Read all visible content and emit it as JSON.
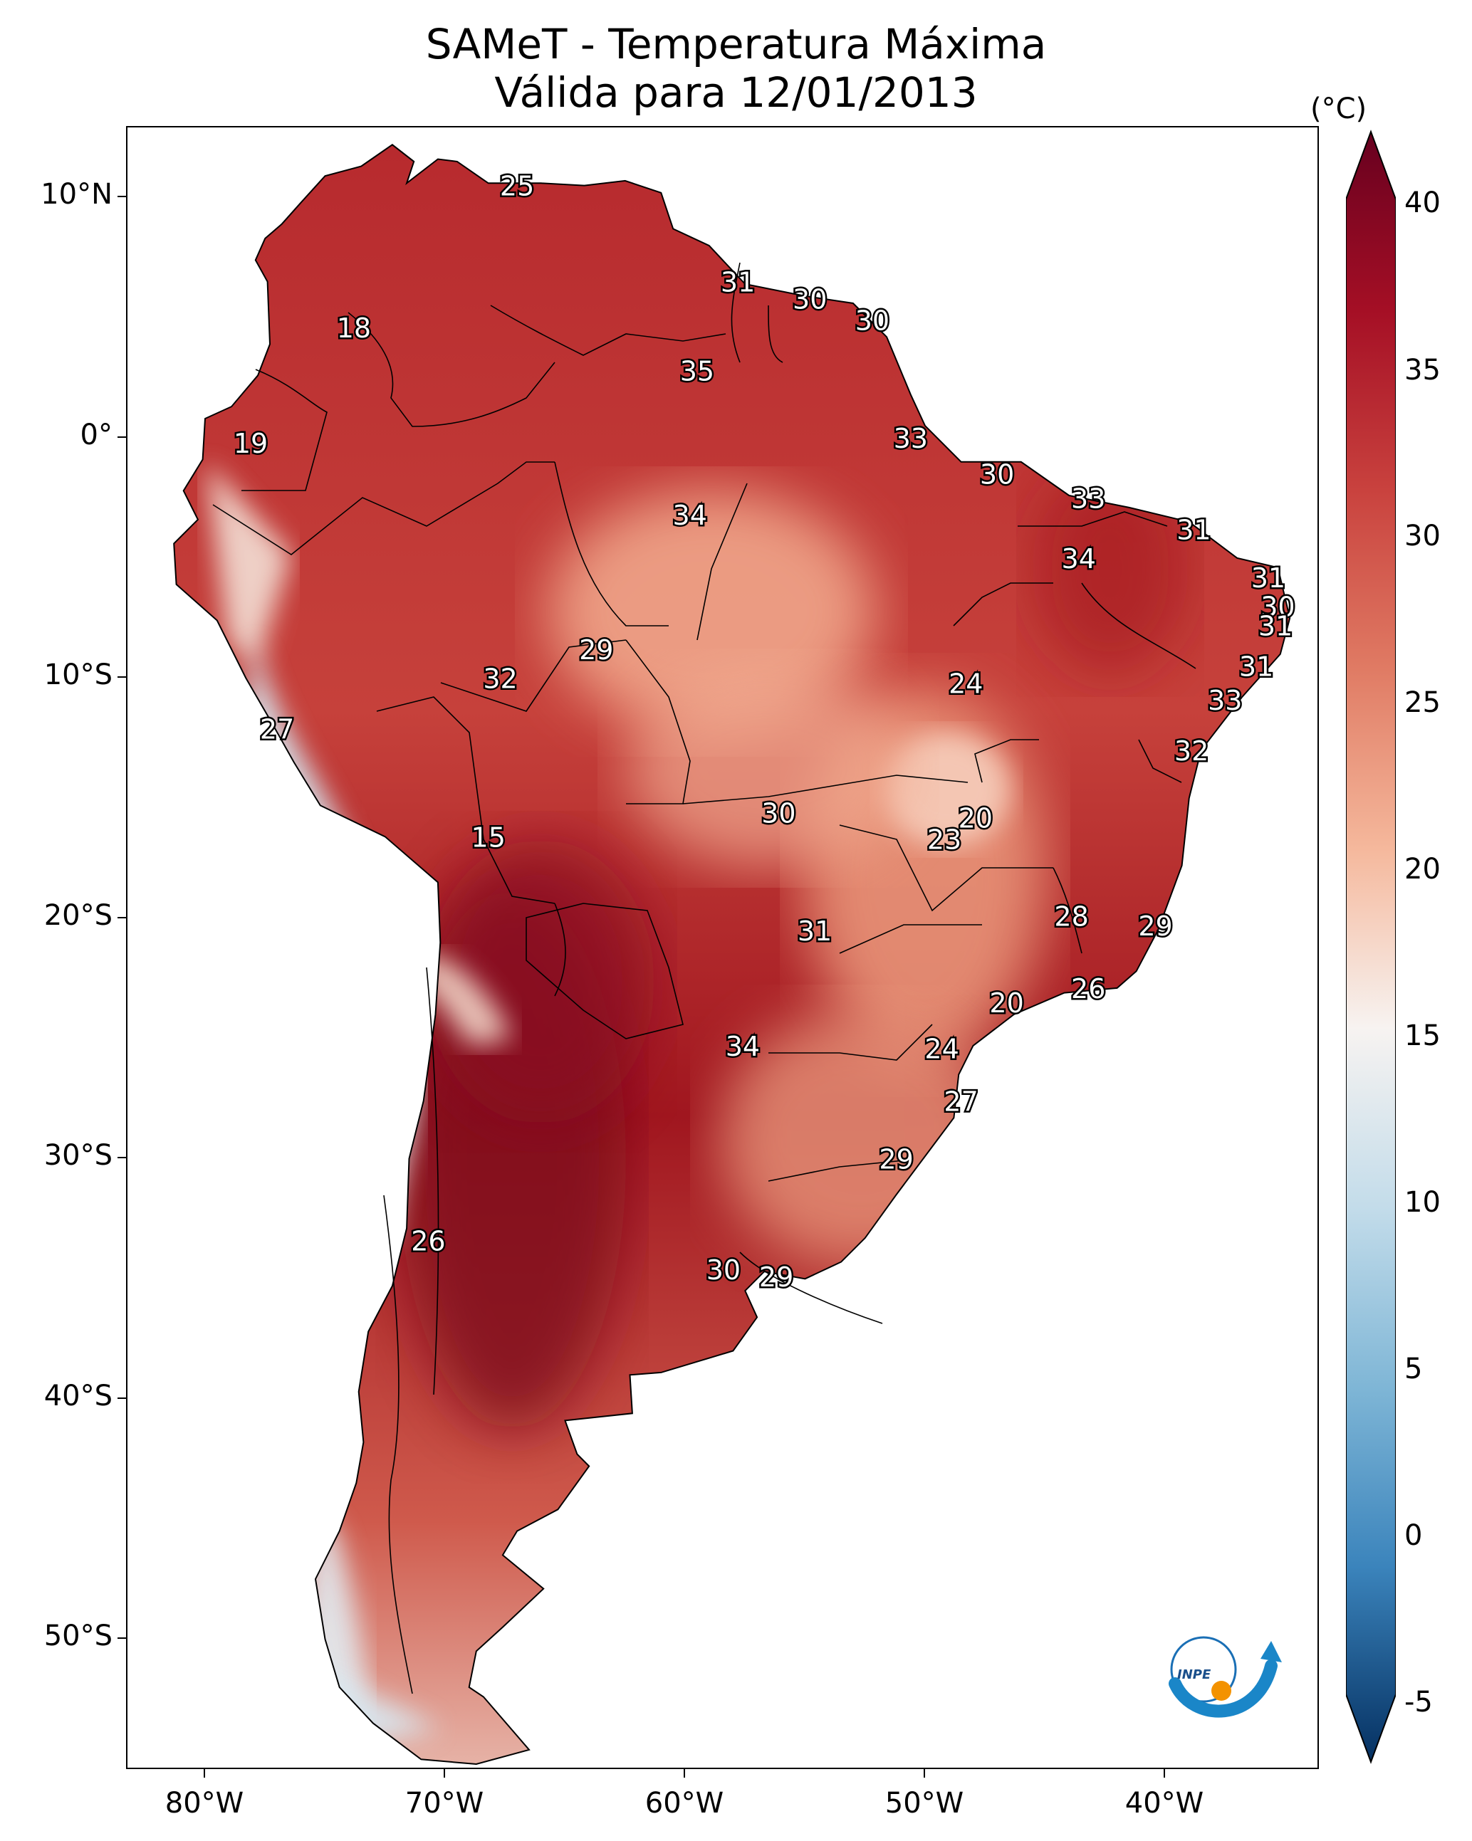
{
  "title": {
    "line1": "SAMeT - Temperatura Máxima",
    "line2": "Válida para 12/01/2013"
  },
  "axes": {
    "lat_labels": [
      "10°N",
      "0°",
      "10°S",
      "20°S",
      "30°S",
      "40°S",
      "50°S"
    ],
    "lon_labels": [
      "80°W",
      "70°W",
      "60°W",
      "50°W",
      "40°W"
    ]
  },
  "colorbar": {
    "unit": "(°C)",
    "ticks": [
      "40",
      "35",
      "30",
      "25",
      "20",
      "15",
      "10",
      "5",
      "0",
      "-5"
    ],
    "min": -5,
    "max": 40,
    "colors": {
      "cold": "#053061",
      "cool": "#4393c3",
      "neutral": "#f7f7f7",
      "warm": "#f4a582",
      "hot": "#b2182b",
      "extreme": "#67001f"
    }
  },
  "station_labels": [
    {
      "value": "25",
      "lon": -67.0,
      "lat": 10.5
    },
    {
      "value": "31",
      "lon": -57.8,
      "lat": 6.5
    },
    {
      "value": "30",
      "lon": -54.8,
      "lat": 5.8
    },
    {
      "value": "30",
      "lon": -52.2,
      "lat": 4.9
    },
    {
      "value": "18",
      "lon": -73.8,
      "lat": 4.6
    },
    {
      "value": "35",
      "lon": -59.5,
      "lat": 2.8
    },
    {
      "value": "33",
      "lon": -50.6,
      "lat": 0.0
    },
    {
      "value": "19",
      "lon": -78.1,
      "lat": -0.2
    },
    {
      "value": "30",
      "lon": -47.0,
      "lat": -1.5
    },
    {
      "value": "33",
      "lon": -43.2,
      "lat": -2.5
    },
    {
      "value": "34",
      "lon": -59.8,
      "lat": -3.2
    },
    {
      "value": "31",
      "lon": -38.8,
      "lat": -3.8
    },
    {
      "value": "34",
      "lon": -43.6,
      "lat": -5.0
    },
    {
      "value": "31",
      "lon": -35.7,
      "lat": -5.8
    },
    {
      "value": "30",
      "lon": -35.3,
      "lat": -7.0
    },
    {
      "value": "31",
      "lon": -35.4,
      "lat": -7.8
    },
    {
      "value": "29",
      "lon": -63.7,
      "lat": -8.8
    },
    {
      "value": "31",
      "lon": -36.2,
      "lat": -9.5
    },
    {
      "value": "32",
      "lon": -67.7,
      "lat": -10.0
    },
    {
      "value": "24",
      "lon": -48.3,
      "lat": -10.2
    },
    {
      "value": "33",
      "lon": -37.5,
      "lat": -10.9
    },
    {
      "value": "27",
      "lon": -77.0,
      "lat": -12.1
    },
    {
      "value": "32",
      "lon": -38.9,
      "lat": -13.0
    },
    {
      "value": "30",
      "lon": -56.1,
      "lat": -15.6
    },
    {
      "value": "20",
      "lon": -47.9,
      "lat": -15.8
    },
    {
      "value": "23",
      "lon": -49.2,
      "lat": -16.7
    },
    {
      "value": "15",
      "lon": -68.2,
      "lat": -16.6
    },
    {
      "value": "28",
      "lon": -43.9,
      "lat": -19.9
    },
    {
      "value": "29",
      "lon": -40.4,
      "lat": -20.3
    },
    {
      "value": "31",
      "lon": -54.6,
      "lat": -20.5
    },
    {
      "value": "26",
      "lon": -43.2,
      "lat": -22.9
    },
    {
      "value": "20",
      "lon": -46.6,
      "lat": -23.5
    },
    {
      "value": "34",
      "lon": -57.6,
      "lat": -25.3
    },
    {
      "value": "24",
      "lon": -49.3,
      "lat": -25.4
    },
    {
      "value": "27",
      "lon": -48.5,
      "lat": -27.6
    },
    {
      "value": "29",
      "lon": -51.2,
      "lat": -30.0
    },
    {
      "value": "26",
      "lon": -70.7,
      "lat": -33.4
    },
    {
      "value": "30",
      "lon": -58.4,
      "lat": -34.6
    },
    {
      "value": "29",
      "lon": -56.2,
      "lat": -34.9
    }
  ]
}
